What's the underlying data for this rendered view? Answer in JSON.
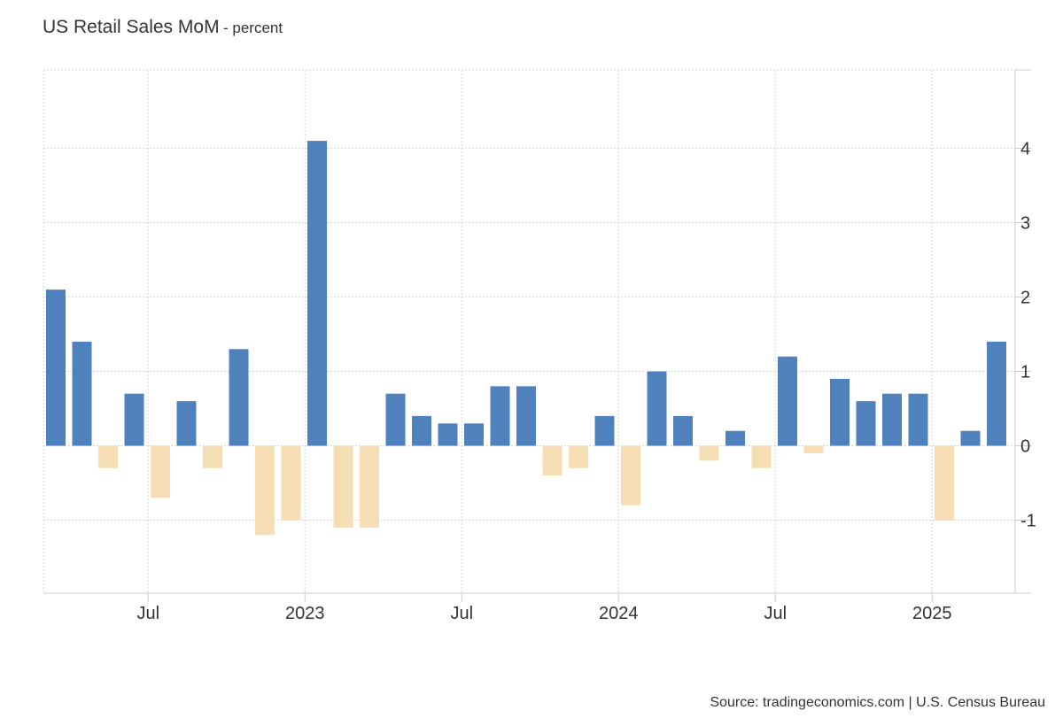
{
  "header": {
    "title": "US Retail Sales MoM",
    "subtitle": "- percent"
  },
  "footer": {
    "source": "Source: tradingeconomics.com | U.S. Census Bureau"
  },
  "chart_data": {
    "type": "bar",
    "title": "US Retail Sales MoM",
    "subtitle": "- percent",
    "ylabel": "",
    "xlabel": "",
    "ylim": [
      -2,
      5
    ],
    "y_ticks": [
      -1,
      0,
      1,
      2,
      3,
      4
    ],
    "x_ticks": [
      {
        "label": "Jul",
        "category": "2022-07"
      },
      {
        "label": "2023",
        "category": "2023-01"
      },
      {
        "label": "Jul",
        "category": "2023-07"
      },
      {
        "label": "2024",
        "category": "2024-01"
      },
      {
        "label": "Jul",
        "category": "2024-07"
      },
      {
        "label": "2025",
        "category": "2025-01"
      }
    ],
    "grid": true,
    "y_axis_position": "right",
    "colors": {
      "positive": "#4f81bd",
      "negative": "#f5deb3",
      "grid": "#d9d9d9",
      "axis": "#cccccc"
    },
    "categories": [
      "2022-03",
      "2022-04",
      "2022-05",
      "2022-06",
      "2022-07",
      "2022-08",
      "2022-09",
      "2022-10",
      "2022-11",
      "2022-12",
      "2023-01",
      "2023-02",
      "2023-03",
      "2023-04",
      "2023-05",
      "2023-06",
      "2023-07",
      "2023-08",
      "2023-09",
      "2023-10",
      "2023-11",
      "2023-12",
      "2024-01",
      "2024-02",
      "2024-03",
      "2024-04",
      "2024-05",
      "2024-06",
      "2024-07",
      "2024-08",
      "2024-09",
      "2024-10",
      "2024-11",
      "2024-12",
      "2025-01",
      "2025-02",
      "2025-03"
    ],
    "values": [
      2.1,
      1.4,
      -0.3,
      0.7,
      -0.7,
      0.6,
      -0.3,
      1.3,
      -1.2,
      -1.0,
      4.1,
      -1.1,
      -1.1,
      0.7,
      0.4,
      0.3,
      0.3,
      0.8,
      0.8,
      -0.4,
      -0.3,
      0.4,
      -0.8,
      1.0,
      0.4,
      -0.2,
      0.2,
      -0.3,
      1.2,
      -0.1,
      0.9,
      0.6,
      0.7,
      0.7,
      -1.0,
      0.2,
      1.4
    ]
  }
}
